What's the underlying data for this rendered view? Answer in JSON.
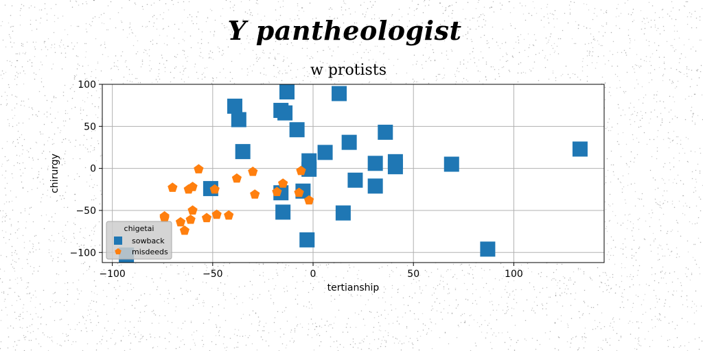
{
  "header": {
    "suptitle": "Y pantheologist"
  },
  "chart_data": {
    "type": "scatter",
    "title": "w protists",
    "xlabel": "tertianship",
    "ylabel": "chirurgy",
    "xlim": [
      -105,
      145
    ],
    "ylim": [
      -112,
      100
    ],
    "xticks": [
      -100,
      -50,
      0,
      50,
      100
    ],
    "yticks": [
      -100,
      -50,
      0,
      50,
      100
    ],
    "xtick_labels": [
      "−100",
      "−50",
      "0",
      "50",
      "100"
    ],
    "ytick_labels": [
      "−100",
      "−50",
      "0",
      "50",
      "100"
    ],
    "grid": true,
    "legend": {
      "title": "chigetai",
      "placement": "lower-left"
    },
    "series": [
      {
        "name": "sowback",
        "marker": "square",
        "color": "#1f77b4",
        "points": [
          [
            -13,
            91
          ],
          [
            13,
            89
          ],
          [
            -39,
            74
          ],
          [
            -16,
            69
          ],
          [
            -14,
            66
          ],
          [
            -37,
            58
          ],
          [
            -8,
            46
          ],
          [
            36,
            43
          ],
          [
            18,
            31
          ],
          [
            6,
            19
          ],
          [
            -35,
            20
          ],
          [
            -2,
            9
          ],
          [
            41,
            8
          ],
          [
            31,
            6
          ],
          [
            69,
            5
          ],
          [
            133,
            23
          ],
          [
            41,
            2
          ],
          [
            -2,
            -1
          ],
          [
            21,
            -14
          ],
          [
            31,
            -21
          ],
          [
            -51,
            -24
          ],
          [
            -5,
            -27
          ],
          [
            -16,
            -29
          ],
          [
            -15,
            -52
          ],
          [
            15,
            -53
          ],
          [
            -3,
            -85
          ],
          [
            87,
            -96
          ],
          [
            -93,
            -103
          ]
        ]
      },
      {
        "name": "misdeeds",
        "marker": "pentagon",
        "color": "#ff7f0e",
        "points": [
          [
            -57,
            -1
          ],
          [
            -30,
            -4
          ],
          [
            -6,
            -3
          ],
          [
            -38,
            -12
          ],
          [
            -15,
            -18
          ],
          [
            -70,
            -23
          ],
          [
            -60,
            -22
          ],
          [
            -62,
            -25
          ],
          [
            -49,
            -25
          ],
          [
            -29,
            -31
          ],
          [
            -18,
            -28
          ],
          [
            -7,
            -29
          ],
          [
            -2,
            -38
          ],
          [
            -60,
            -50
          ],
          [
            -48,
            -55
          ],
          [
            -42,
            -56
          ],
          [
            -74,
            -57
          ],
          [
            -53,
            -59
          ],
          [
            -61,
            -61
          ],
          [
            -74,
            -59
          ],
          [
            -66,
            -64
          ],
          [
            -64,
            -74
          ]
        ]
      }
    ]
  }
}
